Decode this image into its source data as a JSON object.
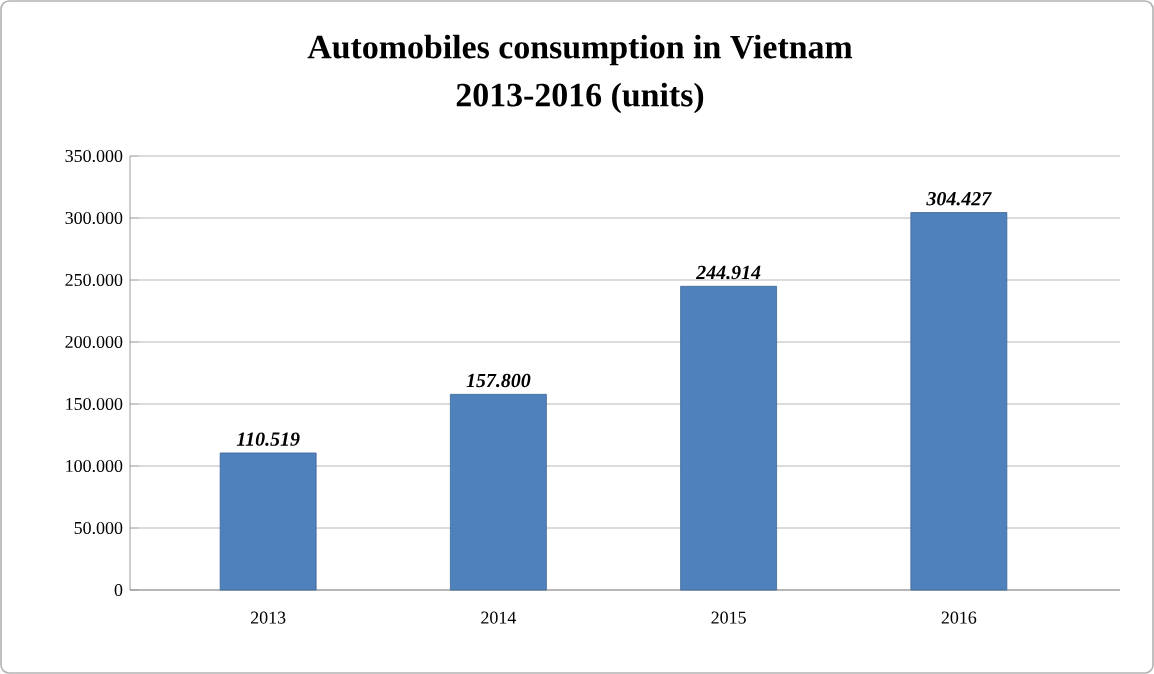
{
  "chart_data": {
    "type": "bar",
    "title": "Automobiles consumption in Vietnam",
    "subtitle": "2013-2016 (units)",
    "categories": [
      "2013",
      "2014",
      "2015",
      "2016"
    ],
    "values": [
      110519,
      157800,
      244914,
      304427
    ],
    "value_labels": [
      "110.519",
      "157.800",
      "244.914",
      "304.427"
    ],
    "color": "#4f81bd",
    "ylim": [
      0,
      350000
    ],
    "yticks": [
      0,
      {
        "value": 50000,
        "label": "50.000"
      },
      {
        "value": 100000,
        "label": "100.000"
      },
      {
        "value": 150000,
        "label": "150.000"
      },
      {
        "value": 200000,
        "label": "200.000"
      },
      {
        "value": 250000,
        "label": "250.000"
      },
      {
        "value": 300000,
        "label": "300.000"
      },
      {
        "value": 350000,
        "label": "350.000"
      }
    ],
    "grid": "y"
  }
}
